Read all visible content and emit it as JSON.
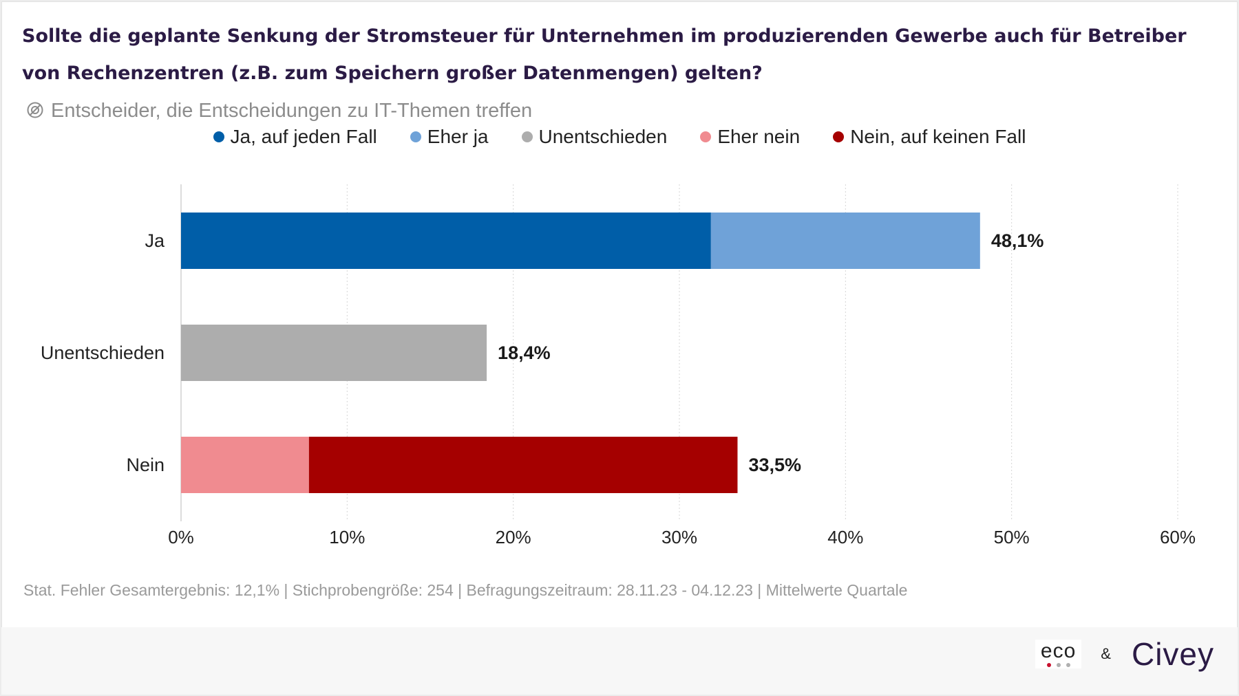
{
  "title": {
    "question": "Sollte die geplante Senkung der Stromsteuer für Unternehmen im produzierenden Gewerbe auch für Betreiber von Rechenzentren (z.B. zum Speichern großer Datenmengen) gelten?",
    "target_group": "Entscheider, die Entscheidungen zu IT-Themen treffen",
    "target_icon": "target-group-icon"
  },
  "legend": [
    {
      "label": "Ja, auf jeden Fall",
      "color": "#005ea8"
    },
    {
      "label": "Eher ja",
      "color": "#6fa2d8"
    },
    {
      "label": "Unentschieden",
      "color": "#adadad"
    },
    {
      "label": "Eher nein",
      "color": "#f08b90"
    },
    {
      "label": "Nein, auf keinen Fall",
      "color": "#a50000"
    }
  ],
  "chart_data": {
    "type": "bar",
    "orientation": "horizontal",
    "stacked": true,
    "categories": [
      "Ja",
      "Unentschieden",
      "Nein"
    ],
    "series": [
      {
        "name": "Ja, auf jeden Fall",
        "color": "#005ea8",
        "values": [
          31.9,
          0,
          0
        ]
      },
      {
        "name": "Eher ja",
        "color": "#6fa2d8",
        "values": [
          16.2,
          0,
          0
        ]
      },
      {
        "name": "Unentschieden",
        "color": "#adadad",
        "values": [
          0,
          18.4,
          0
        ]
      },
      {
        "name": "Eher nein",
        "color": "#f08b90",
        "values": [
          0,
          0,
          7.7
        ]
      },
      {
        "name": "Nein, auf keinen Fall",
        "color": "#a50000",
        "values": [
          0,
          0,
          25.8
        ]
      }
    ],
    "totals": [
      "48,1%",
      "18,4%",
      "33,5%"
    ],
    "total_values": [
      48.1,
      18.4,
      33.5
    ],
    "xlim": [
      0,
      60
    ],
    "xticks": [
      0,
      10,
      20,
      30,
      40,
      50,
      60
    ],
    "xtick_labels": [
      "0%",
      "10%",
      "20%",
      "30%",
      "40%",
      "50%",
      "60%"
    ],
    "grid": true,
    "legend_position": "top-center"
  },
  "footer": {
    "note": "Stat. Fehler Gesamtergebnis: 12,1% | Stichprobengröße: 254 | Befragungszeitraum: 28.11.23 - 04.12.23 | Mittelwerte Quartale"
  },
  "logos": {
    "eco": "eco",
    "ampersand": "&",
    "civey": "Civey",
    "eco_dot_colors": [
      "#c8102e",
      "#b0b0b0",
      "#b0b0b0"
    ]
  }
}
